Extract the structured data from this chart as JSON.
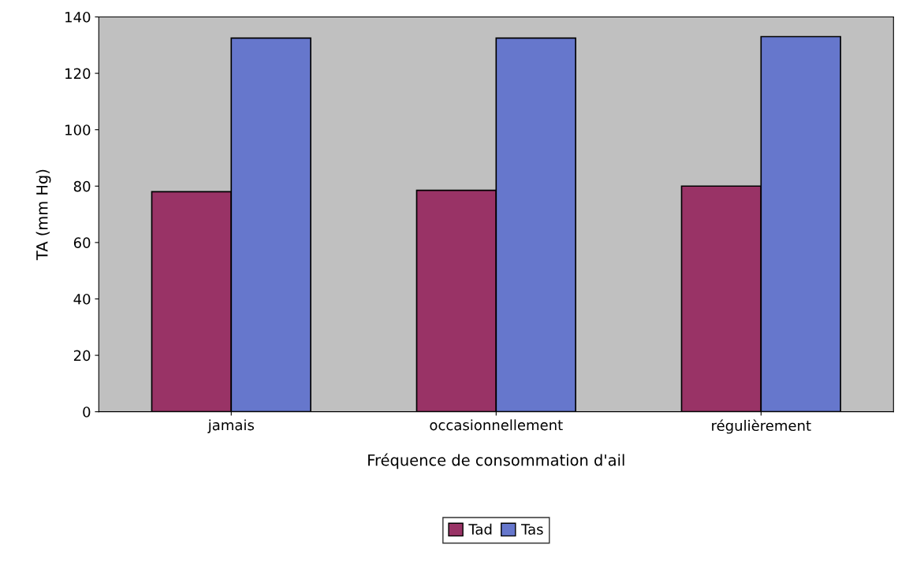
{
  "chart_data": {
    "type": "bar",
    "xlabel": "Fréquence de consommation d'ail",
    "ylabel": "TA (mm Hg)",
    "categories": [
      "jamais",
      "occasionnellement",
      "régulièrement"
    ],
    "series": [
      {
        "name": "Tad",
        "color": "#993366",
        "values": [
          78,
          78.5,
          80
        ]
      },
      {
        "name": "Tas",
        "color": "#6677cc",
        "values": [
          132.5,
          132.5,
          133
        ]
      }
    ],
    "ylim": [
      0,
      140
    ],
    "yticks": [
      0,
      20,
      40,
      60,
      80,
      100,
      120,
      140
    ],
    "grid": false,
    "legend": "bottom"
  }
}
